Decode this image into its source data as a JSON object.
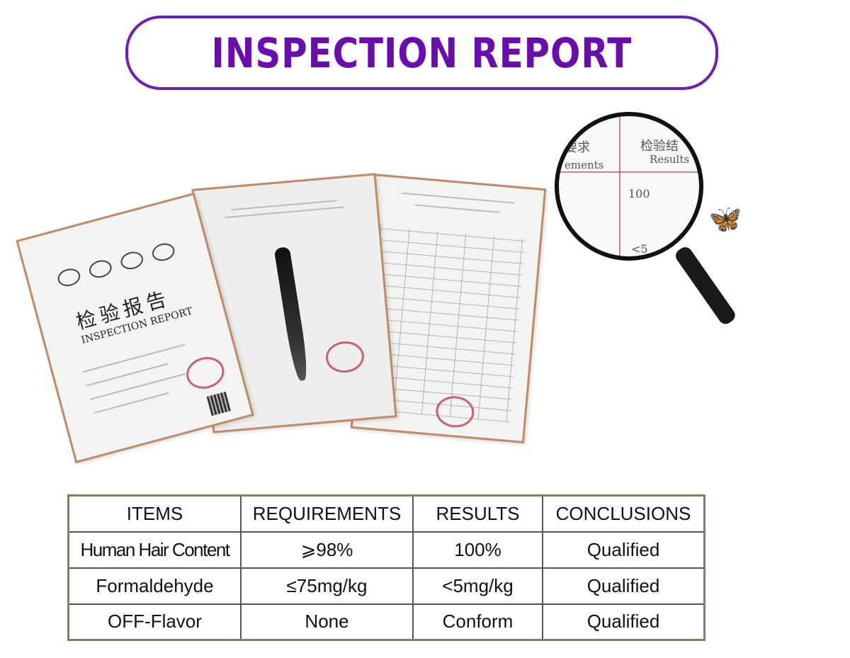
{
  "title": "INSPECTION REPORT",
  "colors": {
    "accent": "#6a0dad",
    "table_border": "#8a7a66",
    "doc_border": "#c08a64"
  },
  "documents": {
    "cover": {
      "title_cn": "检验报告",
      "title_en": "INSPECTION REPORT"
    }
  },
  "magnifier": {
    "header_cn": "检验结",
    "header_en": "Results",
    "left_cn": "要求",
    "left_en": "ements",
    "value1": "100",
    "value2": "<5"
  },
  "table": {
    "headers": [
      "ITEMS",
      "REQUIREMENTS",
      "RESULTS",
      "CONCLUSIONS"
    ],
    "rows": [
      [
        "Human Hair Content",
        "⩾98%",
        "100%",
        "Qualified"
      ],
      [
        "Formaldehyde",
        "≤75mg/kg",
        "<5mg/kg",
        "Qualified"
      ],
      [
        "OFF-Flavor",
        "None",
        "Conform",
        "Qualified"
      ]
    ]
  }
}
